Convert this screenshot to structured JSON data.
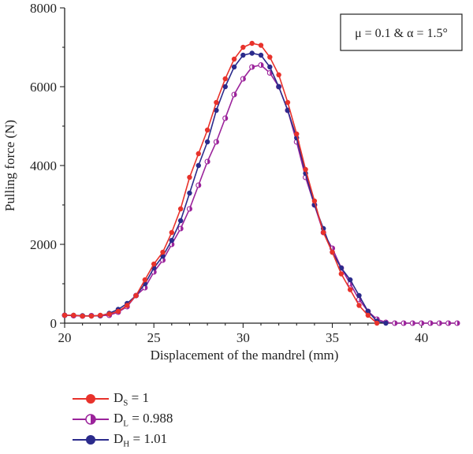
{
  "chart_data": {
    "type": "line",
    "xlabel": "Displacement of the mandrel (mm)",
    "ylabel": "Pulling force (N)",
    "xlim": [
      20,
      42
    ],
    "ylim": [
      0,
      8000
    ],
    "xticks": [
      "20",
      "25",
      "30",
      "35",
      "40"
    ],
    "yticks": [
      "0",
      "2000",
      "4000",
      "6000",
      "8000"
    ],
    "grid": false,
    "legend_position": "bottom-left",
    "annotation": "μ = 0.1 & α = 1.5°",
    "series": [
      {
        "name": "DS = 1",
        "label_main": "D",
        "label_sub": "S",
        "label_value": " = 1",
        "color": "#e8322b",
        "marker": "circle",
        "x": [
          20,
          20.5,
          21,
          21.5,
          22,
          22.5,
          23,
          23.5,
          24,
          24.5,
          25,
          25.5,
          26,
          26.5,
          27,
          27.5,
          28,
          28.5,
          29,
          29.5,
          30,
          30.5,
          31,
          31.5,
          32,
          32.5,
          33,
          33.5,
          34,
          34.5,
          35,
          35.5,
          36,
          36.5,
          37,
          37.5
        ],
        "y": [
          200,
          200,
          180,
          180,
          200,
          230,
          300,
          450,
          700,
          1100,
          1500,
          1800,
          2300,
          2900,
          3700,
          4300,
          4900,
          5600,
          6200,
          6700,
          7000,
          7100,
          7050,
          6750,
          6300,
          5600,
          4800,
          3900,
          3100,
          2300,
          1800,
          1250,
          850,
          450,
          200,
          0
        ]
      },
      {
        "name": "DL = 0.988",
        "label_main": "D",
        "label_sub": "L",
        "label_value": " = 0.988",
        "color": "#9b239b",
        "marker": "half-circle",
        "x": [
          20,
          20.5,
          21,
          21.5,
          22,
          22.5,
          23,
          23.5,
          24,
          24.5,
          25,
          25.5,
          26,
          26.5,
          27,
          27.5,
          28,
          28.5,
          29,
          29.5,
          30,
          30.5,
          31,
          31.5,
          32,
          32.5,
          33,
          33.5,
          34,
          34.5,
          35,
          35.5,
          36,
          36.5,
          37,
          37.5,
          38,
          38.5,
          39,
          39.5,
          40,
          40.5,
          41,
          41.5,
          42
        ],
        "y": [
          200,
          190,
          180,
          190,
          190,
          200,
          280,
          420,
          700,
          900,
          1300,
          1600,
          2000,
          2400,
          2900,
          3500,
          4100,
          4600,
          5200,
          5800,
          6200,
          6500,
          6550,
          6350,
          6000,
          5400,
          4600,
          3700,
          3000,
          2300,
          1900,
          1400,
          1000,
          600,
          300,
          100,
          20,
          0,
          0,
          0,
          0,
          0,
          0,
          0,
          0
        ]
      },
      {
        "name": "DH = 1.01",
        "label_main": "D",
        "label_sub": "H",
        "label_value": " = 1.01",
        "color": "#2b2b8c",
        "marker": "circle",
        "x": [
          20,
          20.5,
          21,
          21.5,
          22,
          22.5,
          23,
          23.5,
          24,
          24.5,
          25,
          25.5,
          26,
          26.5,
          27,
          27.5,
          28,
          28.5,
          29,
          29.5,
          30,
          30.5,
          31,
          31.5,
          32,
          32.5,
          33,
          33.5,
          34,
          34.5,
          35,
          35.5,
          36,
          36.5,
          37,
          37.5,
          38
        ],
        "y": [
          200,
          200,
          190,
          180,
          190,
          250,
          350,
          500,
          700,
          1000,
          1400,
          1700,
          2100,
          2600,
          3300,
          4000,
          4600,
          5400,
          6000,
          6500,
          6800,
          6850,
          6800,
          6500,
          6000,
          5400,
          4700,
          3800,
          3000,
          2400,
          1800,
          1400,
          1100,
          700,
          300,
          50,
          0
        ]
      }
    ]
  }
}
